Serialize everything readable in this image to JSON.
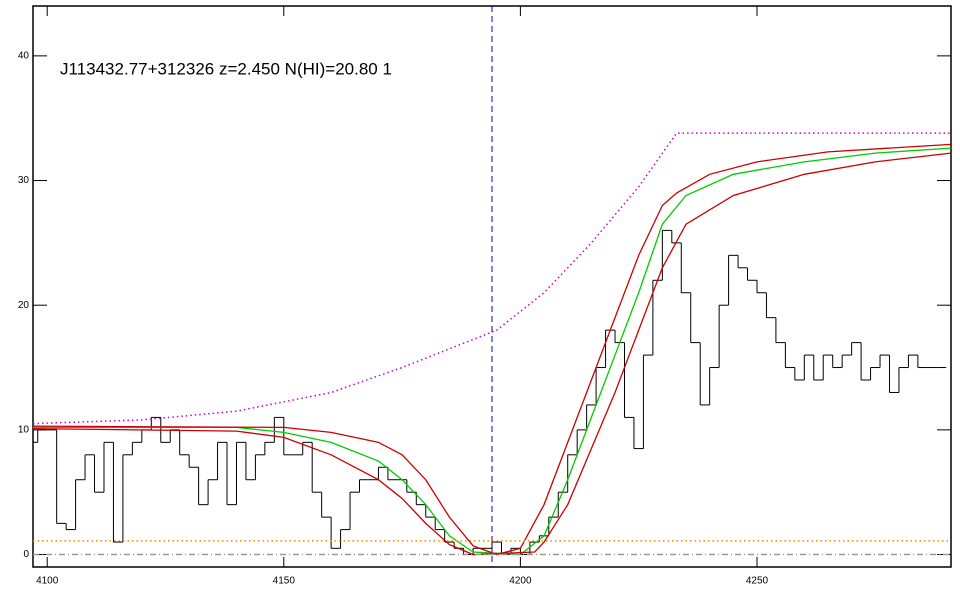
{
  "chart_data": {
    "type": "line",
    "title": "J113432.77+312326 z=2.450 N(HI)=20.80 1",
    "xlim": [
      4097,
      4291
    ],
    "ylim": [
      -1,
      44
    ],
    "xticks": [
      4100,
      4150,
      4200,
      4250
    ],
    "yticks": [
      0,
      10,
      20,
      30,
      40
    ],
    "vline": {
      "x": 4194,
      "color": "#0000cc"
    },
    "series": [
      {
        "style": "step",
        "color": "#000000",
        "x": [
          4097,
          4099,
          4101,
          4103,
          4105,
          4107,
          4109,
          4111,
          4113,
          4115,
          4117,
          4119,
          4121,
          4123,
          4125,
          4127,
          4129,
          4131,
          4133,
          4135,
          4137,
          4139,
          4141,
          4143,
          4145,
          4147,
          4149,
          4151,
          4153,
          4155,
          4157,
          4159,
          4161,
          4163,
          4165,
          4167,
          4169,
          4171,
          4173,
          4175,
          4177,
          4179,
          4181,
          4183,
          4185,
          4187,
          4189,
          4191,
          4193,
          4195,
          4197,
          4199,
          4201,
          4203,
          4205,
          4207,
          4209,
          4211,
          4213,
          4215,
          4217,
          4219,
          4221,
          4223,
          4225,
          4227,
          4229,
          4231,
          4233,
          4235,
          4237,
          4239,
          4241,
          4243,
          4245,
          4247,
          4249,
          4251,
          4253,
          4255,
          4257,
          4259,
          4261,
          4263,
          4265,
          4267,
          4269,
          4271,
          4273,
          4275,
          4277,
          4279,
          4281,
          4283,
          4285,
          4287,
          4289
        ],
        "values": [
          9,
          10,
          10,
          2.5,
          2,
          6,
          8,
          5,
          9,
          1,
          8,
          9,
          10,
          11,
          9,
          10,
          8,
          7,
          4,
          6,
          9,
          4,
          9,
          6,
          8,
          9,
          11,
          8,
          8,
          9,
          5,
          3,
          0.5,
          2,
          5,
          6,
          6,
          7,
          6,
          6,
          5,
          4,
          3,
          2,
          1,
          0.5,
          0,
          0.5,
          0.5,
          1,
          0,
          0.5,
          0,
          1,
          1.5,
          3,
          5,
          8,
          10,
          12,
          15,
          18,
          17,
          11,
          8.5,
          16,
          22,
          26,
          25,
          21,
          17,
          12,
          15,
          20,
          24,
          23,
          22,
          21,
          19,
          17,
          15,
          14,
          16,
          14,
          16,
          15,
          16,
          17,
          14,
          15,
          16,
          13,
          15,
          16,
          15,
          15,
          15
        ]
      },
      {
        "style": "solid",
        "color": "#00cc00",
        "x": [
          4097,
          4140,
          4150,
          4160,
          4170,
          4175,
          4180,
          4185,
          4190,
          4200,
          4205,
          4210,
          4215,
          4220,
          4225,
          4230,
          4235,
          4245,
          4260,
          4275,
          4291
        ],
        "values": [
          10.2,
          10.2,
          9.8,
          9,
          7.5,
          6,
          4,
          1.5,
          0.2,
          0,
          1.5,
          6,
          11,
          16,
          21,
          26.5,
          28.8,
          30.5,
          31.5,
          32.2,
          32.6
        ]
      },
      {
        "style": "solid",
        "color": "#cc0000",
        "x": [
          4097,
          4150,
          4160,
          4170,
          4175,
          4180,
          4185,
          4190,
          4195,
          4200,
          4205,
          4210,
          4215,
          4220,
          4225,
          4230,
          4233,
          4240,
          4250,
          4265,
          4291
        ],
        "values": [
          10.3,
          10.2,
          9.8,
          9,
          8,
          6,
          3,
          0.7,
          0,
          0.5,
          4,
          9,
          14,
          19,
          24,
          28,
          29,
          30.5,
          31.5,
          32.3,
          32.9
        ]
      },
      {
        "style": "solid",
        "color": "#cc0000",
        "x": [
          4097,
          4140,
          4150,
          4160,
          4170,
          4175,
          4180,
          4185,
          4190,
          4203,
          4205,
          4210,
          4215,
          4220,
          4225,
          4230,
          4235,
          4245,
          4260,
          4275,
          4291
        ],
        "values": [
          10.1,
          9.9,
          9.4,
          8,
          6,
          4.5,
          2.5,
          0.8,
          0,
          0.2,
          1,
          4,
          8.5,
          13,
          18,
          23,
          26.5,
          28.8,
          30.5,
          31.5,
          32.2
        ]
      },
      {
        "style": "dotted",
        "color": "#cc00cc",
        "x": [
          4097,
          4120,
          4140,
          4160,
          4175,
          4185,
          4195,
          4205,
          4215,
          4225,
          4233,
          4291
        ],
        "values": [
          10.5,
          10.8,
          11.5,
          13,
          15,
          16.5,
          18,
          21,
          25,
          29.5,
          33.8,
          33.8
        ]
      },
      {
        "style": "dotted",
        "color": "#ff8800",
        "x": [
          4097,
          4291
        ],
        "values": [
          1.1,
          1.1
        ]
      },
      {
        "style": "dashdot",
        "color": "#999999",
        "x": [
          4097,
          4291
        ],
        "values": [
          0,
          0
        ]
      }
    ]
  }
}
